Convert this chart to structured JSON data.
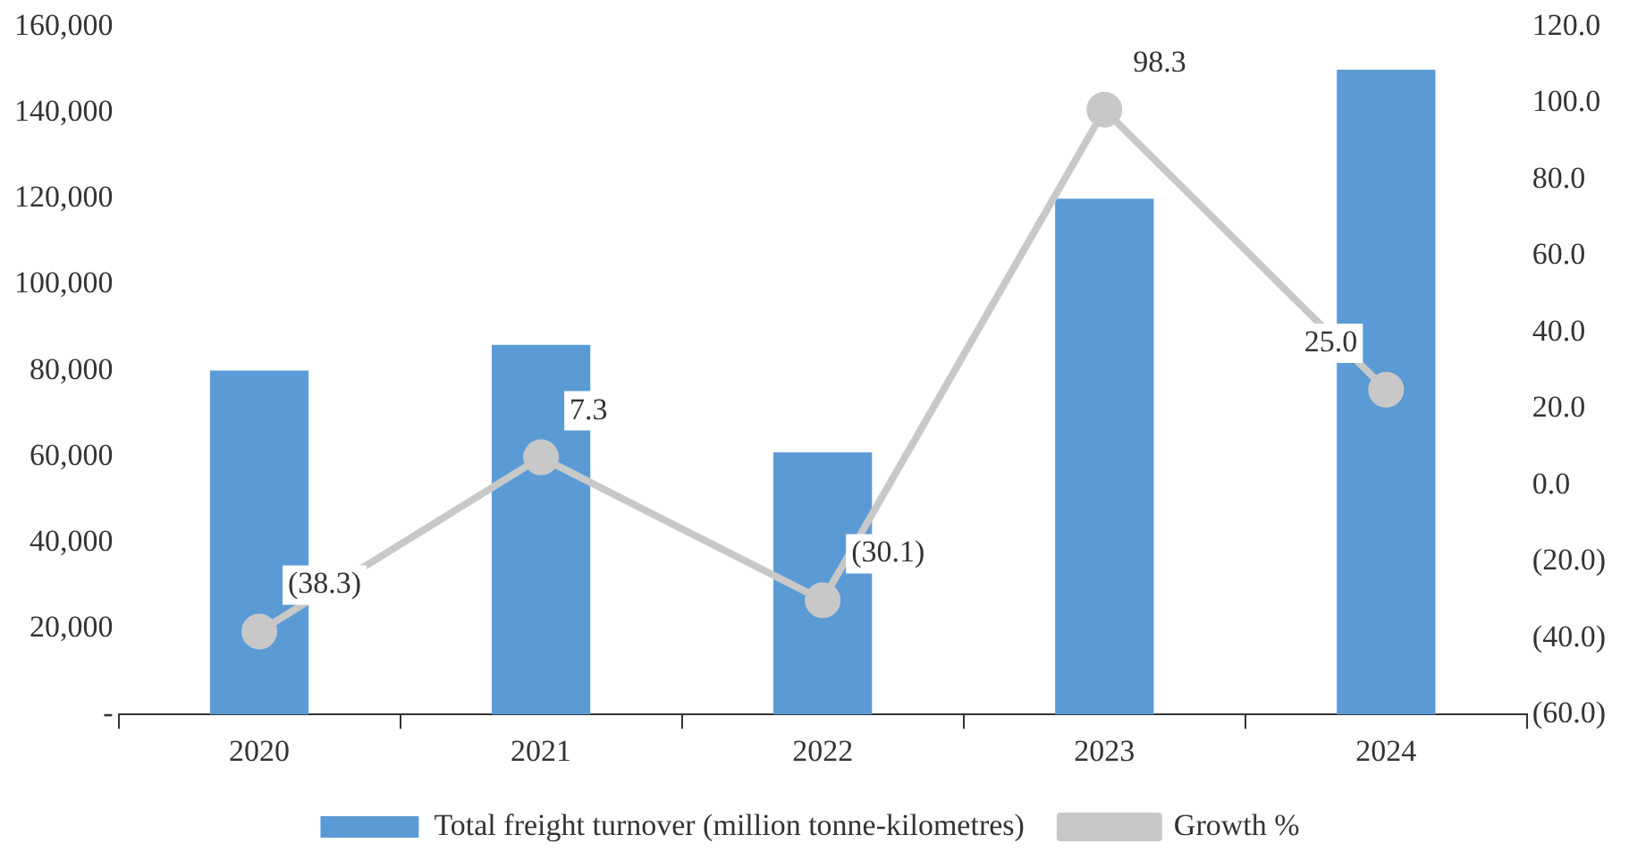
{
  "chart_data": {
    "type": "bar",
    "categories": [
      "2020",
      "2021",
      "2022",
      "2023",
      "2024"
    ],
    "series": [
      {
        "name": "Total freight turnover (million tonne-kilometres)",
        "color": "#5b9bd5",
        "values": [
          80000,
          86000,
          61000,
          120000,
          150000
        ]
      },
      {
        "name": "Growth %",
        "type": "line",
        "axis": "y2",
        "color": "#c8c8c8",
        "values": [
          -38.3,
          7.3,
          -30.1,
          98.3,
          25.0
        ],
        "value_labels": [
          "(38.3)",
          "7.3",
          "(30.1)",
          "98.3",
          "25.0"
        ]
      }
    ],
    "ylim": [
      0,
      160000
    ],
    "yticks": [
      {
        "value": 0,
        "label": "-"
      },
      {
        "value": 20000,
        "label": "20,000"
      },
      {
        "value": 40000,
        "label": "40,000"
      },
      {
        "value": 60000,
        "label": "60,000"
      },
      {
        "value": 80000,
        "label": "80,000"
      },
      {
        "value": 100000,
        "label": "100,000"
      },
      {
        "value": 120000,
        "label": "120,000"
      },
      {
        "value": 140000,
        "label": "140,000"
      },
      {
        "value": 160000,
        "label": "160,000"
      }
    ],
    "y2lim": [
      -60,
      120
    ],
    "y2ticks": [
      {
        "value": -60,
        "label": "(60.0)"
      },
      {
        "value": -40,
        "label": "(40.0)"
      },
      {
        "value": -20,
        "label": "(20.0)"
      },
      {
        "value": 0,
        "label": "0.0"
      },
      {
        "value": 20,
        "label": "20.0"
      },
      {
        "value": 40,
        "label": "40.0"
      },
      {
        "value": 60,
        "label": "60.0"
      },
      {
        "value": 80,
        "label": "80.0"
      },
      {
        "value": 100,
        "label": "100.0"
      },
      {
        "value": 120,
        "label": "120.0"
      }
    ],
    "grid": false,
    "legend": "bottom",
    "marker": "circle",
    "line_style": "solid"
  }
}
